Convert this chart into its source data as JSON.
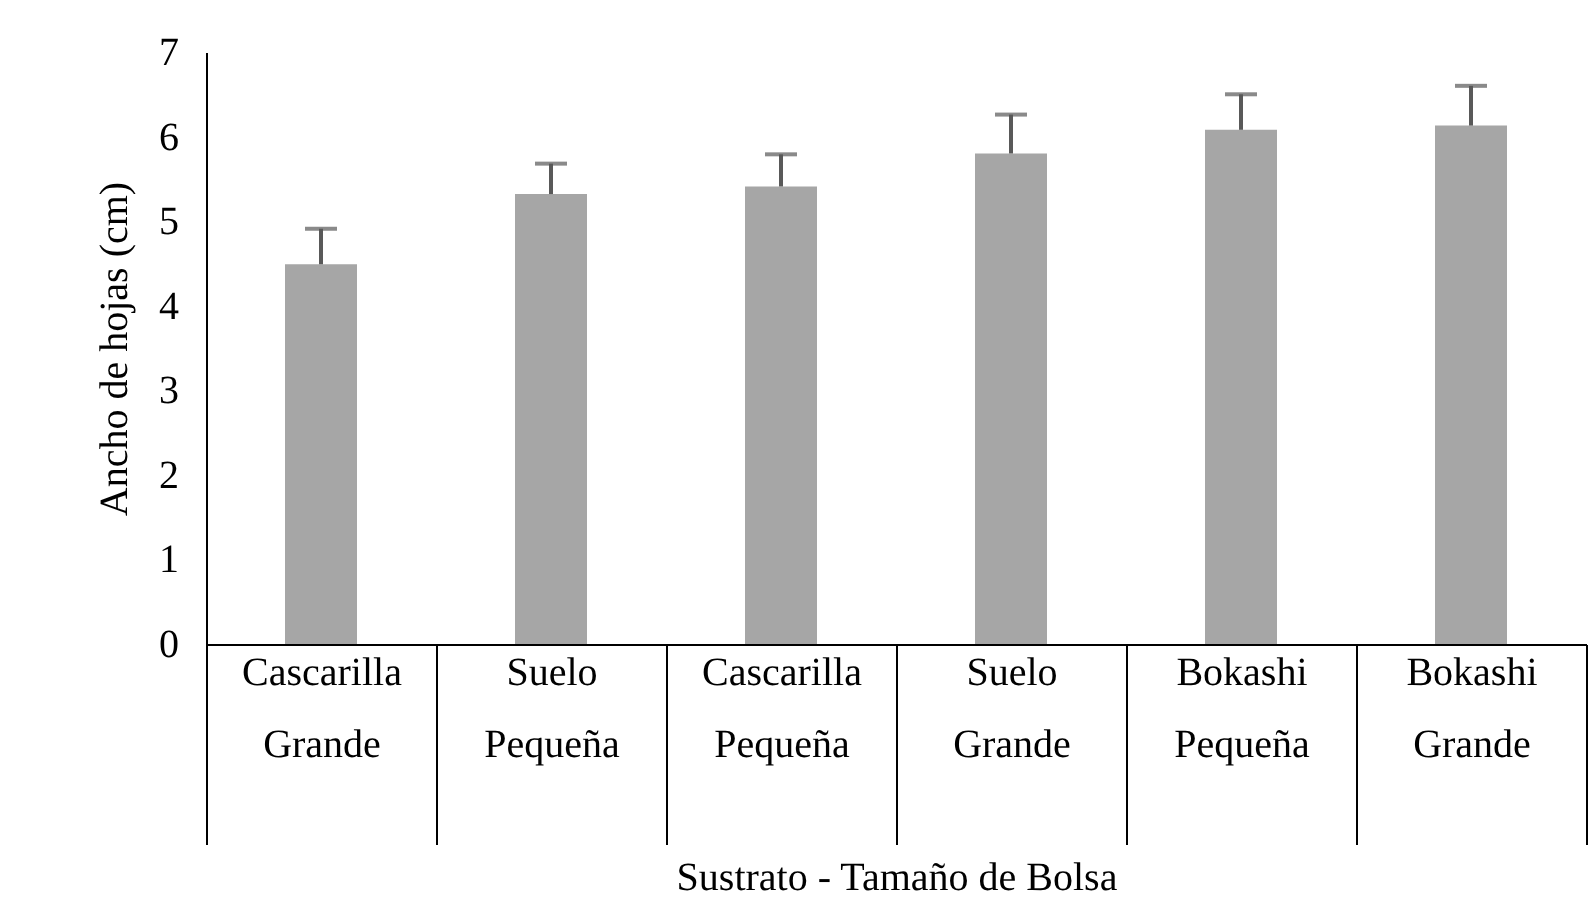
{
  "chart_data": {
    "type": "bar",
    "xlabel": "Sustrato - Tamaño de Bolsa",
    "ylabel": "Ancho de hojas (cm)",
    "categories": [
      "Cascarilla\nGrande",
      "Suelo\nPequeña",
      "Cascarilla\nPequeña",
      "Suelo\nGrande",
      "Bokashi\nPequeña",
      "Bokashi\nGrande"
    ],
    "values": [
      4.49,
      5.32,
      5.41,
      5.8,
      6.08,
      6.13
    ],
    "errors": [
      [
        4.49,
        4.91
      ],
      [
        5.32,
        5.68
      ],
      [
        5.41,
        5.79
      ],
      [
        5.8,
        6.26
      ],
      [
        6.08,
        6.5
      ],
      [
        6.13,
        6.6
      ]
    ],
    "color": "#a6a6a6",
    "ylim": [
      0,
      7
    ],
    "yticks": [
      0,
      1,
      2,
      3,
      4,
      5,
      6,
      7
    ],
    "grid": false
  }
}
